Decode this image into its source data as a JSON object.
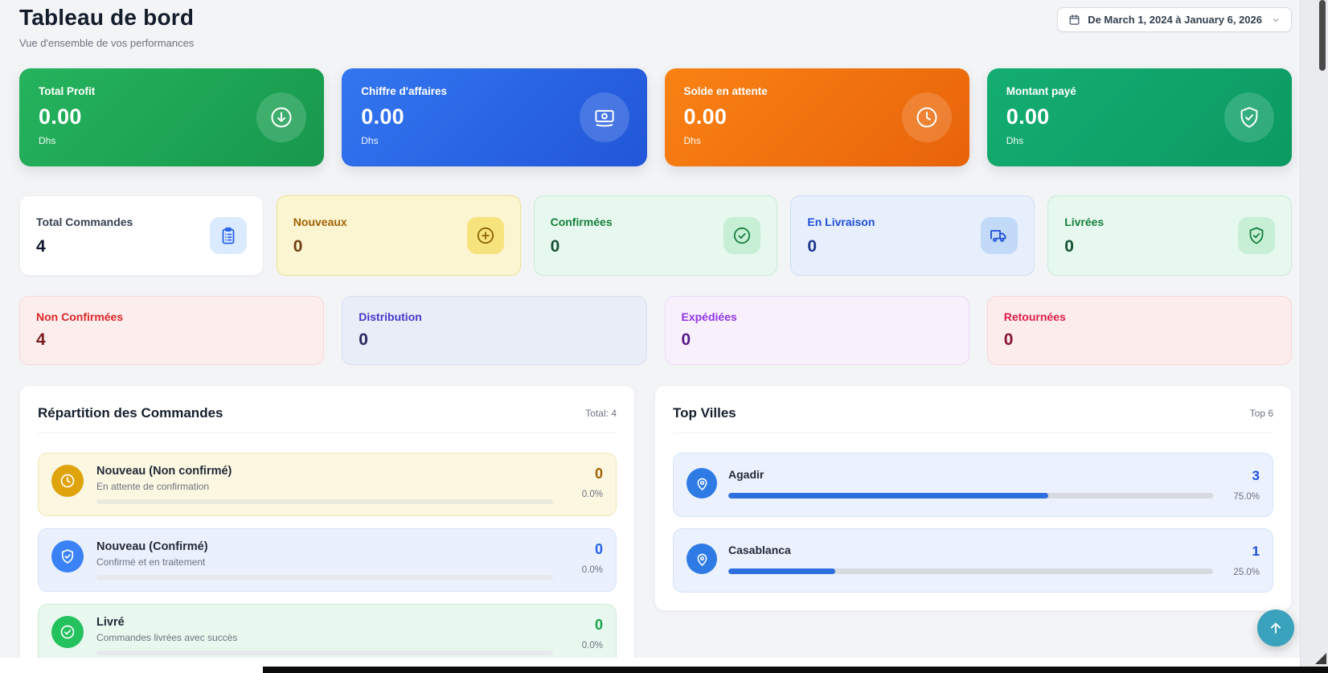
{
  "page": {
    "title": "Tableau de bord",
    "subtitle": "Vue d'ensemble de vos performances"
  },
  "date_filter": {
    "label": "De March 1, 2024 à January 6, 2026"
  },
  "kpi_cards": [
    {
      "label": "Total Profit",
      "value": "0.00",
      "unit": "Dhs",
      "icon": "arrow-down-circle-icon",
      "color_from": "#25b35d",
      "color_to": "#17984d"
    },
    {
      "label": "Chiffre d'affaires",
      "value": "0.00",
      "unit": "Dhs",
      "icon": "banknotes-icon",
      "color_from": "#3376f0",
      "color_to": "#2156d8"
    },
    {
      "label": "Solde en attente",
      "value": "0.00",
      "unit": "Dhs",
      "icon": "clock-icon",
      "color_from": "#f98214",
      "color_to": "#e8630a"
    },
    {
      "label": "Montant payé",
      "value": "0.00",
      "unit": "Dhs",
      "icon": "shield-check-icon",
      "color_from": "#14ad72",
      "color_to": "#0b9a62"
    }
  ],
  "order_stats": [
    {
      "label": "Total Commandes",
      "value": "4",
      "icon": "clipboard-icon",
      "accent": "#2563eb"
    },
    {
      "label": "Nouveaux",
      "value": "0",
      "icon": "plus-circle-icon",
      "accent": "#a16207"
    },
    {
      "label": "Confirmées",
      "value": "0",
      "icon": "check-circle-icon",
      "accent": "#15803d"
    },
    {
      "label": "En Livraison",
      "value": "0",
      "icon": "truck-icon",
      "accent": "#1d4ed8"
    },
    {
      "label": "Livrées",
      "value": "0",
      "icon": "shield-check-icon",
      "accent": "#15803d"
    }
  ],
  "secondary_stats": [
    {
      "label": "Non Confirmées",
      "value": "4",
      "accent": "#dc2626"
    },
    {
      "label": "Distribution",
      "value": "0",
      "accent": "#4338ca"
    },
    {
      "label": "Expédiées",
      "value": "0",
      "accent": "#9333ea"
    },
    {
      "label": "Retournées",
      "value": "0",
      "accent": "#e11d48"
    }
  ],
  "repartition": {
    "title": "Répartition des Commandes",
    "total_label": "Total: 4",
    "items": [
      {
        "name": "Nouveau (Non confirmé)",
        "description": "En attente de confirmation",
        "value": "0",
        "percent": "0.0%",
        "bar_width_pct": 0,
        "icon": "clock-icon",
        "accent": "#dfa30c"
      },
      {
        "name": "Nouveau (Confirmé)",
        "description": "Confirmé et en traitement",
        "value": "0",
        "percent": "0.0%",
        "bar_width_pct": 0,
        "icon": "shield-check-icon",
        "accent": "#3b82f6"
      },
      {
        "name": "Livré",
        "description": "Commandes livrées avec succès",
        "value": "0",
        "percent": "0.0%",
        "bar_width_pct": 0,
        "icon": "check-circle-icon",
        "accent": "#24c15f"
      }
    ]
  },
  "top_villes": {
    "title": "Top Villes",
    "badge": "Top 6",
    "items": [
      {
        "name": "Agadir",
        "value": "3",
        "percent": "75.0%",
        "bar_width_pct": 66,
        "icon": "map-pin-icon"
      },
      {
        "name": "Casablanca",
        "value": "1",
        "percent": "25.0%",
        "bar_width_pct": 22,
        "icon": "map-pin-icon"
      }
    ]
  },
  "fab": {
    "icon": "arrow-up-icon"
  },
  "colors": {
    "page_background": "#f3f4f6",
    "fab_background": "#3aa2bc",
    "city_bar_fill": "#2e6fe0",
    "scrollbar_thumb": "#0b0b0b"
  }
}
